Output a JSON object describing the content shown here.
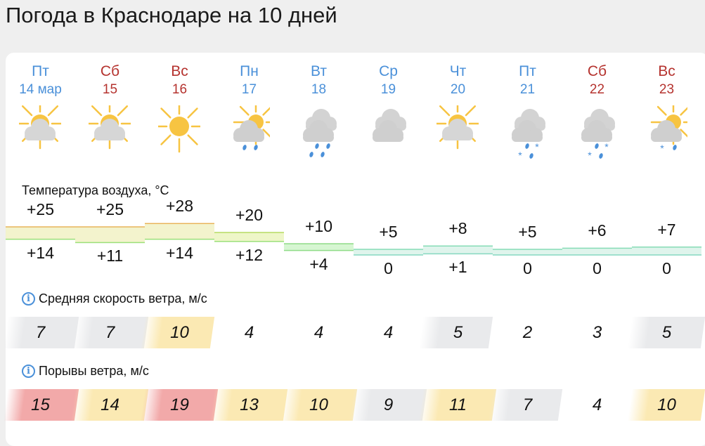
{
  "title": "Погода в Краснодаре на 10 дней",
  "labels": {
    "temperature": "Температура воздуха, °C",
    "wind": "Средняя скорость ветра, м/с",
    "gusts": "Порывы ветра, м/с"
  },
  "colors": {
    "weekday": "#4a90d9",
    "weekend": "#b5332f",
    "gray": "#e9eaec",
    "yellow": "#fbe9b3",
    "red": "#f2a9a9",
    "white": "#ffffff"
  },
  "days": [
    {
      "dow": "Пт",
      "date": "14 мар",
      "weekend": false,
      "icon": "partly-cloudy",
      "max": "+25",
      "min": "+14",
      "tmax": 25,
      "tmin": 14,
      "wind": "7",
      "wind_level": "gray",
      "gust": "15",
      "gust_level": "red"
    },
    {
      "dow": "Сб",
      "date": "15",
      "weekend": true,
      "icon": "partly-cloudy",
      "max": "+25",
      "min": "+11",
      "tmax": 25,
      "tmin": 11,
      "wind": "7",
      "wind_level": "gray",
      "gust": "14",
      "gust_level": "yellow"
    },
    {
      "dow": "Вс",
      "date": "16",
      "weekend": true,
      "icon": "sunny",
      "max": "+28",
      "min": "+14",
      "tmax": 28,
      "tmin": 14,
      "wind": "10",
      "wind_level": "yellow",
      "gust": "19",
      "gust_level": "red"
    },
    {
      "dow": "Пн",
      "date": "17",
      "weekend": false,
      "icon": "partly-cloudy-light-rain",
      "max": "+20",
      "min": "+12",
      "tmax": 20,
      "tmin": 12,
      "wind": "4",
      "wind_level": "white",
      "gust": "13",
      "gust_level": "yellow"
    },
    {
      "dow": "Вт",
      "date": "18",
      "weekend": false,
      "icon": "cloudy-rain",
      "max": "+10",
      "min": "+4",
      "tmax": 10,
      "tmin": 4,
      "wind": "4",
      "wind_level": "white",
      "gust": "10",
      "gust_level": "yellow"
    },
    {
      "dow": "Ср",
      "date": "19",
      "weekend": false,
      "icon": "cloudy",
      "max": "+5",
      "min": "0",
      "tmax": 5,
      "tmin": 0,
      "wind": "4",
      "wind_level": "white",
      "gust": "9",
      "gust_level": "gray"
    },
    {
      "dow": "Чт",
      "date": "20",
      "weekend": false,
      "icon": "partly-cloudy",
      "max": "+8",
      "min": "+1",
      "tmax": 8,
      "tmin": 1,
      "wind": "5",
      "wind_level": "gray",
      "gust": "11",
      "gust_level": "yellow"
    },
    {
      "dow": "Пт",
      "date": "21",
      "weekend": false,
      "icon": "cloudy-sleet",
      "max": "+5",
      "min": "0",
      "tmax": 5,
      "tmin": 0,
      "wind": "2",
      "wind_level": "white",
      "gust": "7",
      "gust_level": "gray"
    },
    {
      "dow": "Сб",
      "date": "22",
      "weekend": true,
      "icon": "cloudy-sleet",
      "max": "+6",
      "min": "0",
      "tmax": 6,
      "tmin": 0,
      "wind": "3",
      "wind_level": "white",
      "gust": "4",
      "gust_level": "white"
    },
    {
      "dow": "Вс",
      "date": "23",
      "weekend": true,
      "icon": "partly-cloudy-sleet",
      "max": "+7",
      "min": "0",
      "tmax": 7,
      "tmin": 0,
      "wind": "5",
      "wind_level": "gray",
      "gust": "10",
      "gust_level": "yellow"
    }
  ]
}
